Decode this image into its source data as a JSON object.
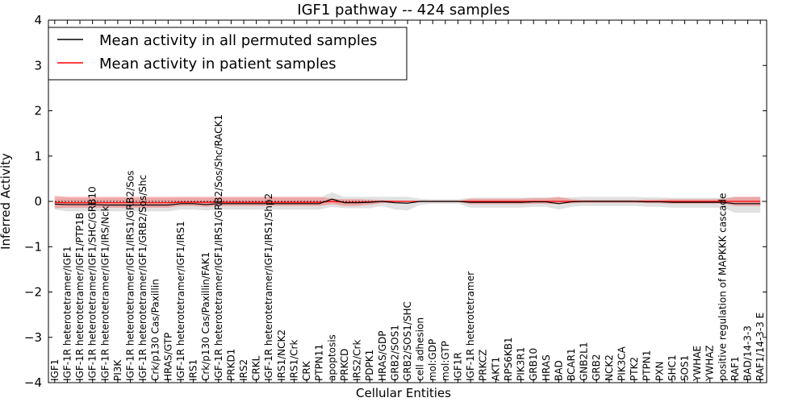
{
  "chart_data": {
    "type": "line",
    "title": "IGF1 pathway -- 424 samples",
    "xlabel": "Cellular Entities",
    "ylabel": "Inferred Activity",
    "ylim": [
      -4,
      4
    ],
    "yticks": [
      -4,
      -3,
      -2,
      -1,
      0,
      1,
      2,
      3,
      4
    ],
    "ytick_labels": [
      "−4",
      "−3",
      "−2",
      "−1",
      "0",
      "1",
      "2",
      "3",
      "4"
    ],
    "legend_position": "top-left",
    "grid": false,
    "categories": [
      "IGF1",
      "IGF-1R heterotetramer/IGF1",
      "IGF-1R heterotetramer/IGF1/PTP1B",
      "IGF-1R heterotetramer/IGF1/SHC/GRB10",
      "IGF-1R heterotetramer/IGF1/IRS/Nck",
      "PI3K",
      "IGF-1R heterotetramer/IGF1/IRS1/GRB2/Sos",
      "IGF-1R heterotetramer/IGF1/GRB2/Sos/Shc",
      "Crk/p130 Cas/Paxillin",
      "HRAS/GTP",
      "IGF-1R heterotetramer/IGF1/IRS1",
      "IRS1",
      "Crk/p130 Cas/Paxillin/FAK1",
      "IGF-1R heterotetramer/IGF1/IRS1/GRB2/Sos/Shc/RACK1",
      "PRKD1",
      "IRS2",
      "CRKL",
      "IGF-1R heterotetramer/IGF1/IRS1/Shp2",
      "IRS1/NCK2",
      "IRS1/Crk",
      "CRK",
      "PTPN11",
      "apoptosis",
      "PRKCD",
      "IRS2/Crk",
      "PDPK1",
      "HRAS/GDP",
      "GRB2/SOS1",
      "GRB2/SOS1/SHC",
      "cell adhesion",
      "mol:GDP",
      "mol:GTP",
      "IGF1R",
      "IGF-1R heterotetramer",
      "PRKCZ",
      "AKT1",
      "RPS6KB1",
      "PIK3R1",
      "GRB10",
      "HRAS",
      "BAD",
      "BCAR1",
      "GNB2L1",
      "GRB2",
      "NCK2",
      "PIK3CA",
      "PTK2",
      "PTPN1",
      "PXN",
      "SHC1",
      "SOS1",
      "YWHAE",
      "YWHAZ",
      "positive regulation of MAPKKK cascade",
      "RAF1",
      "BAD/14-3-3",
      "RAF1/14-3-3 E"
    ],
    "series": [
      {
        "name": "Mean activity in all permuted samples",
        "color": "#000000",
        "values": [
          -0.06,
          -0.07,
          -0.07,
          -0.07,
          -0.08,
          -0.08,
          -0.08,
          -0.08,
          -0.08,
          -0.08,
          -0.05,
          -0.05,
          -0.07,
          -0.05,
          -0.05,
          -0.05,
          -0.05,
          -0.05,
          -0.05,
          -0.05,
          -0.05,
          -0.05,
          0.05,
          -0.03,
          -0.03,
          -0.02,
          0.0,
          -0.03,
          -0.04,
          0.0,
          0.0,
          0.0,
          0.0,
          -0.02,
          -0.02,
          -0.02,
          -0.02,
          -0.02,
          -0.01,
          -0.01,
          -0.05,
          -0.01,
          0.0,
          0.0,
          0.0,
          0.0,
          0.0,
          -0.01,
          -0.01,
          -0.02,
          -0.02,
          -0.02,
          -0.02,
          -0.02,
          -0.05,
          -0.05,
          -0.05
        ],
        "band": {
          "color": "#bdbdbd",
          "lower": [
            -0.18,
            -0.22,
            -0.22,
            -0.22,
            -0.22,
            -0.22,
            -0.22,
            -0.22,
            -0.22,
            -0.22,
            -0.18,
            -0.18,
            -0.2,
            -0.18,
            -0.18,
            -0.18,
            -0.18,
            -0.18,
            -0.18,
            -0.18,
            -0.18,
            -0.18,
            -0.12,
            -0.15,
            -0.15,
            -0.15,
            -0.1,
            -0.18,
            -0.2,
            -0.08,
            -0.05,
            -0.05,
            -0.05,
            -0.14,
            -0.14,
            -0.14,
            -0.14,
            -0.14,
            -0.12,
            -0.12,
            -0.18,
            -0.12,
            -0.1,
            -0.1,
            -0.1,
            -0.1,
            -0.1,
            -0.12,
            -0.12,
            -0.14,
            -0.14,
            -0.14,
            -0.14,
            -0.14,
            -0.25,
            -0.25,
            -0.25
          ],
          "upper": [
            0.06,
            0.07,
            0.07,
            0.07,
            0.07,
            0.07,
            0.07,
            0.07,
            0.07,
            0.07,
            0.08,
            0.08,
            0.07,
            0.08,
            0.08,
            0.08,
            0.08,
            0.08,
            0.08,
            0.08,
            0.08,
            0.08,
            0.2,
            0.1,
            0.1,
            0.1,
            0.1,
            0.1,
            0.1,
            0.06,
            0.05,
            0.05,
            0.05,
            0.08,
            0.08,
            0.08,
            0.08,
            0.08,
            0.09,
            0.09,
            0.08,
            0.09,
            0.1,
            0.1,
            0.1,
            0.1,
            0.1,
            0.09,
            0.09,
            0.08,
            0.08,
            0.08,
            0.08,
            0.08,
            0.1,
            0.1,
            0.1
          ]
        }
      },
      {
        "name": "Mean activity in patient samples",
        "color": "#ff0000",
        "values": [
          -0.02,
          -0.03,
          -0.03,
          -0.03,
          -0.03,
          -0.03,
          -0.03,
          -0.03,
          -0.03,
          -0.03,
          -0.02,
          -0.02,
          -0.02,
          -0.02,
          -0.02,
          -0.02,
          -0.02,
          -0.02,
          -0.02,
          -0.02,
          -0.02,
          -0.02,
          0.0,
          -0.02,
          -0.02,
          -0.01,
          0.0,
          0.0,
          0.0,
          0.0,
          0.0,
          0.0,
          0.0,
          0.0,
          0.0,
          0.0,
          0.0,
          0.0,
          0.0,
          0.0,
          0.0,
          0.0,
          0.0,
          0.0,
          0.0,
          0.0,
          0.0,
          0.0,
          0.0,
          0.0,
          0.0,
          0.0,
          0.0,
          0.0,
          0.0,
          0.0,
          0.0
        ],
        "band": {
          "color": "#f08080",
          "lower": [
            -0.15,
            -0.14,
            -0.14,
            -0.14,
            -0.14,
            -0.14,
            -0.14,
            -0.14,
            -0.14,
            -0.14,
            -0.1,
            -0.1,
            -0.12,
            -0.1,
            -0.1,
            -0.1,
            -0.1,
            -0.1,
            -0.1,
            -0.1,
            -0.1,
            -0.1,
            -0.06,
            -0.1,
            -0.1,
            -0.07,
            -0.04,
            -0.02,
            -0.01,
            -0.01,
            -0.01,
            -0.01,
            -0.01,
            -0.06,
            -0.06,
            -0.06,
            -0.06,
            -0.06,
            -0.05,
            -0.05,
            -0.06,
            -0.04,
            -0.03,
            -0.03,
            -0.03,
            -0.03,
            -0.03,
            -0.04,
            -0.04,
            -0.05,
            -0.05,
            -0.05,
            -0.05,
            -0.05,
            -0.1,
            -0.1,
            -0.1
          ],
          "upper": [
            0.12,
            0.1,
            0.1,
            0.1,
            0.1,
            0.1,
            0.1,
            0.1,
            0.1,
            0.1,
            0.1,
            0.1,
            0.1,
            0.1,
            0.1,
            0.1,
            0.1,
            0.1,
            0.1,
            0.1,
            0.1,
            0.1,
            0.06,
            0.05,
            0.05,
            0.04,
            0.03,
            0.02,
            0.01,
            0.01,
            0.01,
            0.01,
            0.01,
            0.06,
            0.06,
            0.06,
            0.06,
            0.06,
            0.07,
            0.07,
            0.1,
            0.05,
            0.03,
            0.03,
            0.03,
            0.03,
            0.03,
            0.04,
            0.04,
            0.05,
            0.05,
            0.05,
            0.05,
            0.05,
            0.1,
            0.1,
            0.1
          ]
        }
      }
    ]
  }
}
